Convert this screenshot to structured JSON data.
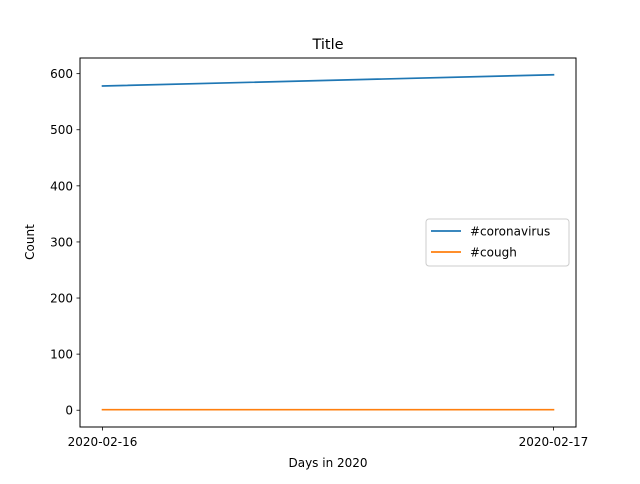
{
  "chart_data": {
    "type": "line",
    "title": "Title",
    "xlabel": "Days in 2020",
    "ylabel": "Count",
    "x": [
      "2020-02-16",
      "2020-02-17"
    ],
    "xlim": [
      -0.05,
      1.05
    ],
    "ylim": [
      -29.9,
      627.9
    ],
    "yticks": [
      0,
      100,
      200,
      300,
      400,
      500,
      600
    ],
    "series": [
      {
        "name": "#coronavirus",
        "values": [
          578,
          598
        ],
        "color": "#1f77b4"
      },
      {
        "name": "#cough",
        "values": [
          1,
          1
        ],
        "color": "#ff7f0e"
      }
    ],
    "legend_position": "center-right",
    "grid": false
  }
}
